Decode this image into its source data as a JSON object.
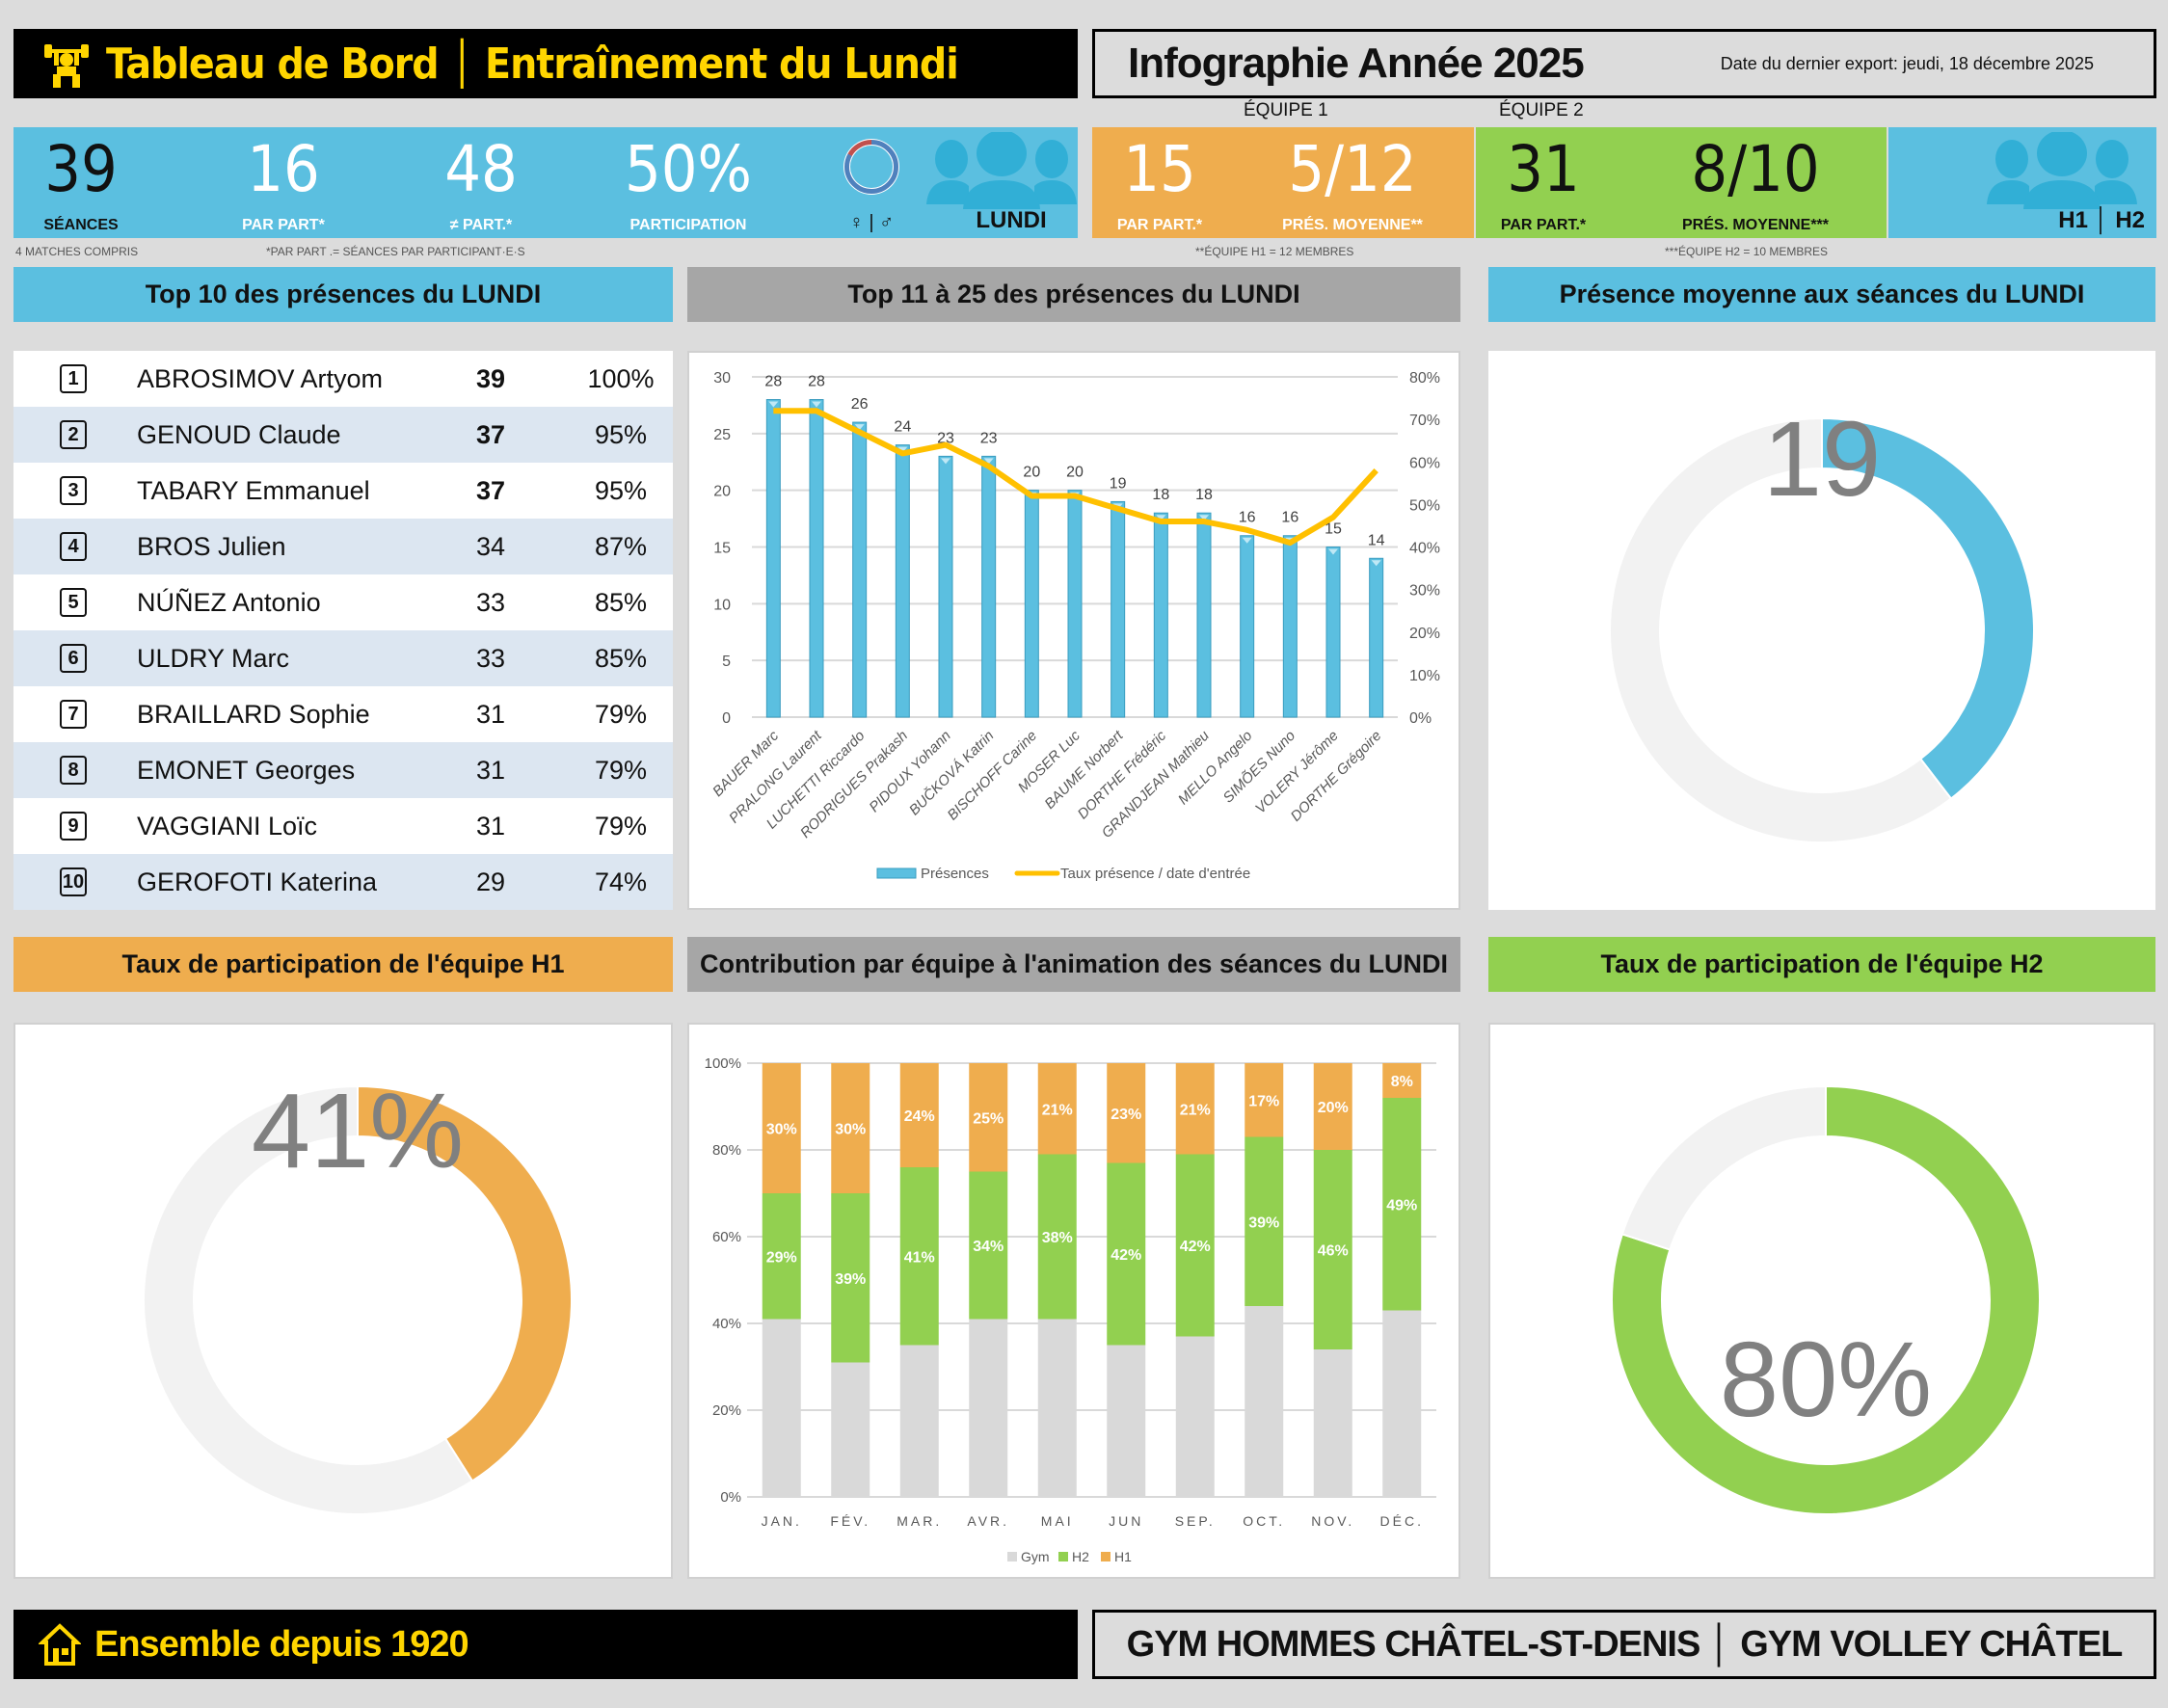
{
  "header": {
    "title_left": "Tableau de Bord",
    "title_right": "Entraînement du Lundi",
    "infographie": "Infographie Année 2025",
    "export_date": "Date du dernier export: jeudi, 18 décembre 2025",
    "footer_left": "Ensemble depuis 1920",
    "footer_right_a": "GYM HOMMES CHÂTEL-ST-DENIS",
    "footer_right_b": "GYM VOLLEY CHÂTEL"
  },
  "kpis": {
    "seances": {
      "value": "39",
      "label": "SÉANCES"
    },
    "par_part": {
      "value": "16",
      "label": "PAR PART*"
    },
    "diff_part": {
      "value": "48",
      "label": "≠ PART.*"
    },
    "participation": {
      "value": "50%",
      "label": "PARTICIPATION"
    },
    "gender": {
      "label": "♀ | ♂",
      "female_share": 0.17,
      "male_share": 0.83
    },
    "day_label": "LUNDI",
    "equipe1": {
      "heading": "ÉQUIPE 1",
      "par_part": "15",
      "par_part_label": "PAR PART.*",
      "pres": "5/12",
      "pres_label": "PRÉS. MOYENNE**"
    },
    "equipe2": {
      "heading": "ÉQUIPE 2",
      "par_part": "31",
      "par_part_label": "PAR PART.*",
      "pres": "8/10",
      "pres_label": "PRÉS. MOYENNE***"
    },
    "teams_label_a": "H1",
    "teams_label_b": "H2"
  },
  "footnotes": {
    "matches": "4 MATCHES COMPRIS",
    "par_part": "*PAR PART .= SÉANCES PAR PARTICIPANT·E·S",
    "h1": "**ÉQUIPE H1 = 12 MEMBRES",
    "h2": "***ÉQUIPE H2 = 10 MEMBRES"
  },
  "sections": {
    "top10": "Top 10 des présences du LUNDI",
    "top11": "Top 11 à 25 des présences du LUNDI",
    "avg": "Présence moyenne aux séances du LUNDI",
    "h1": "Taux de participation de l'équipe H1",
    "contrib": "Contribution par équipe à l'animation des séances du LUNDI",
    "h2": "Taux de participation de l'équipe H2"
  },
  "top10": [
    {
      "rank": "1",
      "name": "ABROSIMOV Artyom",
      "count": "39",
      "pct": "100%",
      "bold": true
    },
    {
      "rank": "2",
      "name": "GENOUD Claude",
      "count": "37",
      "pct": "95%",
      "bold": true
    },
    {
      "rank": "3",
      "name": "TABARY Emmanuel",
      "count": "37",
      "pct": "95%",
      "bold": true
    },
    {
      "rank": "4",
      "name": "BROS Julien",
      "count": "34",
      "pct": "87%",
      "bold": false
    },
    {
      "rank": "5",
      "name": "NÚÑEZ Antonio",
      "count": "33",
      "pct": "85%",
      "bold": false
    },
    {
      "rank": "6",
      "name": "ULDRY Marc",
      "count": "33",
      "pct": "85%",
      "bold": false
    },
    {
      "rank": "7",
      "name": "BRAILLARD Sophie",
      "count": "31",
      "pct": "79%",
      "bold": false
    },
    {
      "rank": "8",
      "name": "EMONET Georges",
      "count": "31",
      "pct": "79%",
      "bold": false
    },
    {
      "rank": "9",
      "name": "VAGGIANI Loïc",
      "count": "31",
      "pct": "79%",
      "bold": false
    },
    {
      "rank": "10",
      "name": "GEROFOTI Katerina",
      "count": "29",
      "pct": "74%",
      "bold": false
    }
  ],
  "colors": {
    "blue": "#5bbfe0",
    "orange": "#efad4e",
    "green": "#92d050",
    "gold": "#ffc000",
    "gym": "#d9d9d9",
    "track": "#f2f2f2",
    "female": "#c0504d",
    "male": "#4f81bd"
  },
  "chart_data": [
    {
      "id": "top11",
      "type": "bar",
      "title": "Top 11 à 25 des présences du LUNDI",
      "categories": [
        "BAUER Marc",
        "PRALONG Laurent",
        "LUCHETTI Riccardo",
        "RODRIGUES Prakash",
        "PIDOUX Yohann",
        "BUČKOVÁ Katrin",
        "BISCHOFF Carine",
        "MOSER Luc",
        "BAUME Norbert",
        "DORTHE Frédéric",
        "GRANDJEAN Mathieu",
        "MELLO Angelo",
        "SIMÕES Nuno",
        "VOLERY Jérôme",
        "DORTHE Grégoire"
      ],
      "series": [
        {
          "name": "Présences",
          "type": "bar",
          "axis": "left",
          "values": [
            28,
            28,
            26,
            24,
            23,
            23,
            20,
            20,
            19,
            18,
            18,
            16,
            16,
            15,
            14
          ]
        },
        {
          "name": "Taux présence / date d'entrée",
          "type": "line",
          "axis": "right",
          "values": [
            0.72,
            0.72,
            0.67,
            0.62,
            0.64,
            0.59,
            0.52,
            0.52,
            0.49,
            0.46,
            0.46,
            0.44,
            0.41,
            0.47,
            0.58
          ]
        }
      ],
      "ylim": [
        0,
        30
      ],
      "yticks": [
        "0",
        "5",
        "10",
        "15",
        "20",
        "25",
        "30"
      ],
      "y2lim": [
        0,
        0.8
      ],
      "y2ticks": [
        "0%",
        "10%",
        "20%",
        "30%",
        "40%",
        "50%",
        "60%",
        "70%",
        "80%"
      ],
      "legend": "bottom",
      "grid": true
    },
    {
      "id": "avg",
      "type": "pie",
      "title": "Présence moyenne aux séances du LUNDI",
      "center_label": "19",
      "values": [
        19,
        29
      ],
      "labels": [
        "Présence moyenne",
        "Reste"
      ]
    },
    {
      "id": "h1",
      "type": "pie",
      "title": "Taux de participation de l'équipe H1",
      "center_label": "41%",
      "values": [
        41,
        59
      ],
      "labels": [
        "Participation",
        "Reste"
      ]
    },
    {
      "id": "contrib",
      "type": "bar",
      "stacked": true,
      "title": "Contribution par équipe à l'animation des séances du LUNDI",
      "categories": [
        "JAN.",
        "FÉV.",
        "MAR.",
        "AVR.",
        "MAI",
        "JUN",
        "SEP.",
        "OCT.",
        "NOV.",
        "DÉC."
      ],
      "series": [
        {
          "name": "Gym",
          "values": [
            41,
            31,
            35,
            41,
            41,
            35,
            37,
            44,
            34,
            43
          ]
        },
        {
          "name": "H2",
          "values": [
            29,
            39,
            41,
            34,
            38,
            42,
            42,
            39,
            46,
            49
          ]
        },
        {
          "name": "H1",
          "values": [
            30,
            30,
            24,
            25,
            21,
            23,
            21,
            17,
            20,
            8
          ]
        }
      ],
      "ylim": [
        0,
        100
      ],
      "yticks": [
        "0%",
        "20%",
        "40%",
        "60%",
        "80%",
        "100%"
      ],
      "legend": "bottom",
      "grid": true
    },
    {
      "id": "h2",
      "type": "pie",
      "title": "Taux de participation de l'équipe H2",
      "center_label": "80%",
      "values": [
        80,
        20
      ],
      "labels": [
        "Participation",
        "Reste"
      ]
    }
  ]
}
